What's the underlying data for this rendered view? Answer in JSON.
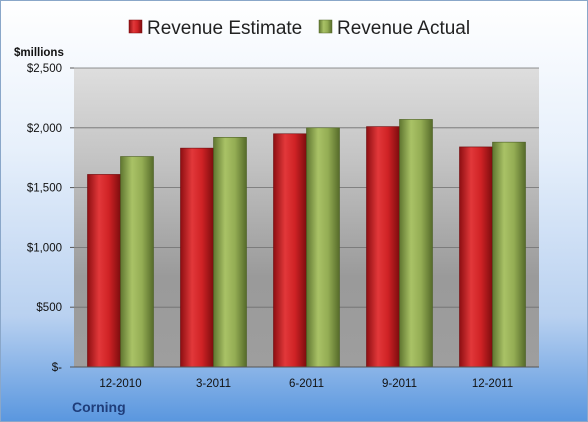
{
  "company": "Corning",
  "colors": {
    "estimate": "#c0191c",
    "actual": "#8aa34a",
    "company_text": "#1f3d7a"
  },
  "chart_data": {
    "type": "bar",
    "title": "",
    "xlabel": "",
    "ylabel": "$millions",
    "categories": [
      "12-2010",
      "3-2011",
      "6-2011",
      "9-2011",
      "12-2011"
    ],
    "series": [
      {
        "name": "Revenue Estimate",
        "values": [
          1610,
          1830,
          1950,
          2010,
          1840
        ]
      },
      {
        "name": "Revenue Actual",
        "values": [
          1760,
          1920,
          2000,
          2070,
          1880
        ]
      }
    ],
    "ylim": [
      0,
      2500
    ],
    "yticks": [
      0,
      500,
      1000,
      1500,
      2000,
      2500
    ],
    "ytick_labels": [
      "$-",
      "$500",
      "$1,000",
      "$1,500",
      "$2,000",
      "$2,500"
    ],
    "grid": true,
    "legend_position": "top"
  }
}
